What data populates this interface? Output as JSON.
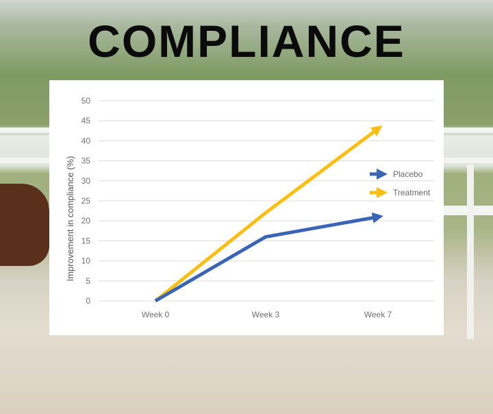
{
  "title": "COMPLIANCE",
  "chart_data": {
    "type": "line",
    "title": "",
    "xlabel": "",
    "ylabel": "Improvement in compliance (%)",
    "categories": [
      "Week 0",
      "Week 3",
      "Week 7"
    ],
    "ylim": [
      0,
      50
    ],
    "yticks": [
      0,
      5,
      10,
      15,
      20,
      25,
      30,
      35,
      40,
      45,
      50
    ],
    "grid": true,
    "legend_position": "right",
    "series": [
      {
        "name": "Placebo",
        "values": [
          0,
          16,
          21
        ],
        "color": "#3a64b4"
      },
      {
        "name": "Treatment",
        "values": [
          0,
          22,
          43
        ],
        "color": "#fbbf14"
      }
    ]
  }
}
